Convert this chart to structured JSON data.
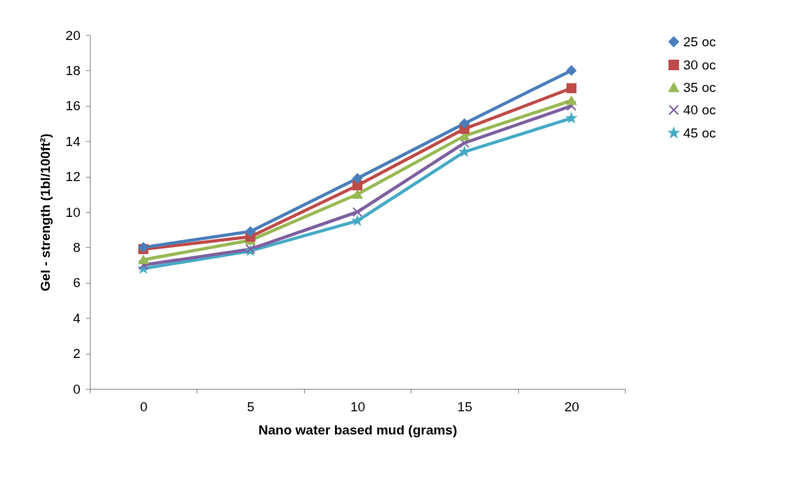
{
  "chart_data": {
    "type": "line",
    "xlabel": "Nano water based mud (grams)",
    "ylabel": "Gel - strength (1bl/100ft²)",
    "categories": [
      "0",
      "5",
      "10",
      "15",
      "20"
    ],
    "ylim": [
      0,
      20
    ],
    "yticks": [
      0,
      2,
      4,
      6,
      8,
      10,
      12,
      14,
      16,
      18,
      20
    ],
    "grid": false,
    "legend": "right",
    "series": [
      {
        "name": "25 oc",
        "color": "#4a7ebb",
        "marker": "diamond",
        "values": [
          8.0,
          8.9,
          11.9,
          15.0,
          18.0
        ]
      },
      {
        "name": "30 oc",
        "color": "#be4b48",
        "marker": "square",
        "values": [
          7.9,
          8.6,
          11.5,
          14.7,
          17.0
        ]
      },
      {
        "name": "35 oc",
        "color": "#98b954",
        "marker": "triangle",
        "values": [
          7.3,
          8.4,
          11.0,
          14.3,
          16.3
        ]
      },
      {
        "name": "40 oc",
        "color": "#7d60a0",
        "marker": "cross",
        "values": [
          7.0,
          7.9,
          10.0,
          13.9,
          16.0
        ]
      },
      {
        "name": "45 oc",
        "color": "#46aac5",
        "marker": "star",
        "values": [
          6.8,
          7.8,
          9.5,
          13.4,
          15.3
        ]
      }
    ]
  }
}
